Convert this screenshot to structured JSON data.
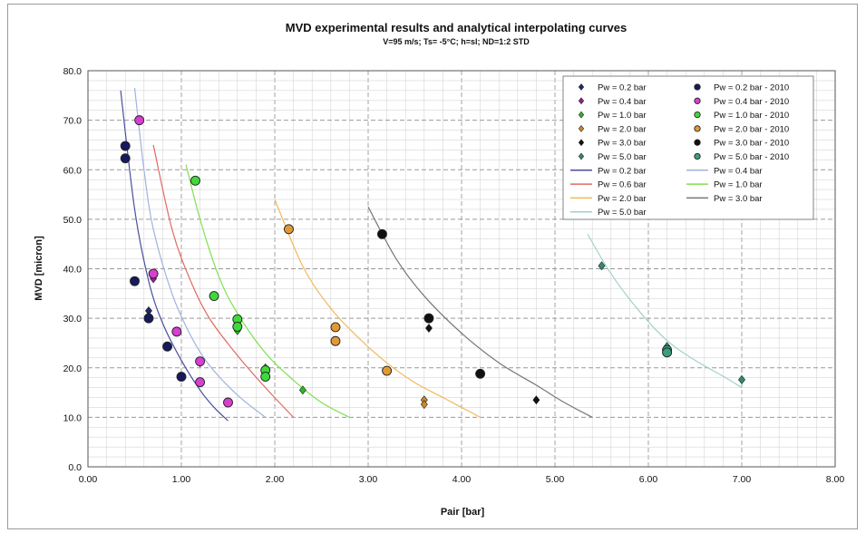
{
  "chart_data": {
    "type": "scatter",
    "title": "MVD experimental results and analytical interpolating curves",
    "subtitle": "V=95 m/s; Ts= -5°C;  h=sl; ND=1:2 STD",
    "xlabel": "Pair [bar]",
    "ylabel": "MVD [micron]",
    "xlim": [
      0,
      8
    ],
    "ylim": [
      0,
      80
    ],
    "x_ticks": [
      "0.00",
      "1.00",
      "2.00",
      "3.00",
      "4.00",
      "5.00",
      "6.00",
      "7.00",
      "8.00"
    ],
    "y_ticks": [
      "0.0",
      "10.0",
      "20.0",
      "30.0",
      "40.0",
      "50.0",
      "60.0",
      "70.0",
      "80.0"
    ],
    "grid": true,
    "legend_position": "top-right",
    "series": [
      {
        "name": "Pw = 0.2 bar",
        "kind": "marker",
        "marker": "diamond",
        "color": "#1f2a6e",
        "points": [
          [
            0.65,
            31.5
          ],
          [
            0.65,
            30.5
          ]
        ]
      },
      {
        "name": "Pw = 0.2 bar - 2010",
        "kind": "marker",
        "marker": "circle",
        "color": "#141a5c",
        "points": [
          [
            0.4,
            64.8
          ],
          [
            0.4,
            62.3
          ],
          [
            0.5,
            37.5
          ],
          [
            0.65,
            30.0
          ],
          [
            0.85,
            24.3
          ],
          [
            1.0,
            18.2
          ]
        ]
      },
      {
        "name": "Pw = 0.4 bar",
        "kind": "marker",
        "marker": "diamond",
        "color": "#a0189a",
        "points": [
          [
            0.7,
            38.0
          ],
          [
            1.2,
            21.0
          ]
        ]
      },
      {
        "name": "Pw = 0.4 bar - 2010",
        "kind": "marker",
        "marker": "circle",
        "color": "#d63fd1",
        "points": [
          [
            0.55,
            70.0
          ],
          [
            0.7,
            39.0
          ],
          [
            0.95,
            27.3
          ],
          [
            1.2,
            21.3
          ],
          [
            1.2,
            17.1
          ],
          [
            1.5,
            13.0
          ]
        ]
      },
      {
        "name": "Pw = 1.0 bar",
        "kind": "marker",
        "marker": "diamond",
        "color": "#2fb52a",
        "points": [
          [
            1.6,
            27.5
          ],
          [
            1.9,
            20.0
          ],
          [
            2.3,
            15.5
          ]
        ]
      },
      {
        "name": "Pw = 1.0 bar - 2010",
        "kind": "marker",
        "marker": "circle",
        "color": "#3ed93a",
        "points": [
          [
            1.15,
            57.8
          ],
          [
            1.35,
            34.5
          ],
          [
            1.6,
            29.8
          ],
          [
            1.6,
            28.3
          ],
          [
            1.9,
            19.5
          ],
          [
            1.9,
            18.2
          ]
        ]
      },
      {
        "name": "Pw = 2.0 bar",
        "kind": "marker",
        "marker": "diamond",
        "color": "#c98a2c",
        "points": [
          [
            3.6,
            13.5
          ],
          [
            3.6,
            12.6
          ]
        ]
      },
      {
        "name": "Pw = 2.0 bar - 2010",
        "kind": "marker",
        "marker": "circle",
        "color": "#e09a35",
        "points": [
          [
            2.15,
            48.0
          ],
          [
            2.65,
            28.2
          ],
          [
            2.65,
            25.4
          ],
          [
            3.2,
            19.4
          ]
        ]
      },
      {
        "name": "Pw = 3.0 bar",
        "kind": "marker",
        "marker": "diamond",
        "color": "#111111",
        "points": [
          [
            3.65,
            28.0
          ],
          [
            4.8,
            13.5
          ]
        ]
      },
      {
        "name": "Pw = 3.0 bar - 2010",
        "kind": "marker",
        "marker": "circle",
        "color": "#111111",
        "points": [
          [
            3.15,
            47.0
          ],
          [
            3.65,
            30.0
          ],
          [
            4.2,
            18.8
          ]
        ]
      },
      {
        "name": "Pw = 5.0 bar",
        "kind": "marker",
        "marker": "diamond",
        "color": "#2e8b6e",
        "points": [
          [
            5.5,
            40.6
          ],
          [
            6.2,
            24.3
          ],
          [
            7.0,
            17.6
          ]
        ]
      },
      {
        "name": "Pw = 5.0 bar - 2010",
        "kind": "marker",
        "marker": "circle",
        "color": "#3a9e80",
        "points": [
          [
            6.2,
            23.6
          ],
          [
            6.2,
            23.1
          ]
        ]
      },
      {
        "name": "Pw = 0.2 bar",
        "kind": "line",
        "color": "#4a4e9c",
        "points": [
          [
            0.35,
            76.0
          ],
          [
            0.5,
            52.0
          ],
          [
            0.65,
            37.5
          ],
          [
            0.8,
            29.0
          ],
          [
            1.0,
            21.5
          ],
          [
            1.2,
            15.5
          ],
          [
            1.35,
            12.0
          ],
          [
            1.5,
            9.3
          ]
        ]
      },
      {
        "name": "Pw = 0.4 bar",
        "kind": "line",
        "color": "#9fb2e0",
        "points": [
          [
            0.5,
            76.5
          ],
          [
            0.6,
            60.0
          ],
          [
            0.7,
            48.0
          ],
          [
            0.9,
            35.0
          ],
          [
            1.1,
            26.5
          ],
          [
            1.3,
            20.5
          ],
          [
            1.6,
            14.5
          ],
          [
            1.9,
            10.0
          ]
        ]
      },
      {
        "name": "Pw = 0.6 bar",
        "kind": "line",
        "color": "#e06a62",
        "points": [
          [
            0.7,
            65.0
          ],
          [
            0.9,
            48.0
          ],
          [
            1.1,
            37.5
          ],
          [
            1.3,
            30.0
          ],
          [
            1.6,
            22.5
          ],
          [
            1.9,
            16.0
          ],
          [
            2.2,
            10.0
          ]
        ]
      },
      {
        "name": "Pw = 1.0 bar",
        "kind": "line",
        "color": "#7fe050",
        "points": [
          [
            1.05,
            61.0
          ],
          [
            1.2,
            50.0
          ],
          [
            1.4,
            38.5
          ],
          [
            1.6,
            31.0
          ],
          [
            1.9,
            23.0
          ],
          [
            2.2,
            17.5
          ],
          [
            2.5,
            13.0
          ],
          [
            2.8,
            10.0
          ]
        ]
      },
      {
        "name": "Pw = 2.0 bar",
        "kind": "line",
        "color": "#f3b85a",
        "points": [
          [
            2.0,
            54.0
          ],
          [
            2.3,
            40.5
          ],
          [
            2.6,
            32.0
          ],
          [
            2.9,
            26.0
          ],
          [
            3.2,
            21.0
          ],
          [
            3.5,
            17.0
          ],
          [
            3.8,
            14.0
          ],
          [
            4.2,
            10.0
          ]
        ]
      },
      {
        "name": "Pw = 3.0 bar",
        "kind": "line",
        "color": "#777777",
        "points": [
          [
            3.0,
            52.5
          ],
          [
            3.3,
            42.0
          ],
          [
            3.6,
            34.5
          ],
          [
            4.0,
            27.0
          ],
          [
            4.4,
            21.0
          ],
          [
            4.8,
            16.5
          ],
          [
            5.1,
            13.0
          ],
          [
            5.4,
            10.0
          ]
        ]
      },
      {
        "name": "Pw = 5.0 bar",
        "kind": "line",
        "color": "#9fd2cc",
        "points": [
          [
            5.35,
            47.0
          ],
          [
            5.6,
            39.0
          ],
          [
            5.9,
            31.5
          ],
          [
            6.2,
            25.5
          ],
          [
            6.5,
            21.5
          ],
          [
            6.8,
            18.3
          ],
          [
            7.0,
            16.0
          ]
        ]
      }
    ],
    "legend": [
      {
        "label": "Pw = 0.2 bar",
        "kind": "diamond",
        "color": "#1f2a6e"
      },
      {
        "label": "Pw = 0.2 bar - 2010",
        "kind": "circle",
        "color": "#141a5c"
      },
      {
        "label": "Pw = 0.4 bar",
        "kind": "diamond",
        "color": "#a0189a"
      },
      {
        "label": "Pw = 0.4 bar - 2010",
        "kind": "circle",
        "color": "#d63fd1"
      },
      {
        "label": "Pw = 1.0 bar",
        "kind": "diamond",
        "color": "#2fb52a"
      },
      {
        "label": "Pw = 1.0 bar - 2010",
        "kind": "circle",
        "color": "#3ed93a"
      },
      {
        "label": "Pw = 2.0 bar",
        "kind": "diamond",
        "color": "#c98a2c"
      },
      {
        "label": "Pw = 2.0 bar - 2010",
        "kind": "circle",
        "color": "#e09a35"
      },
      {
        "label": "Pw = 3.0 bar",
        "kind": "diamond",
        "color": "#111111"
      },
      {
        "label": "Pw = 3.0 bar - 2010",
        "kind": "circle",
        "color": "#111111"
      },
      {
        "label": "Pw = 5.0 bar",
        "kind": "diamond",
        "color": "#2e8b6e"
      },
      {
        "label": "Pw = 5.0 bar - 2010",
        "kind": "circle",
        "color": "#3a9e80"
      },
      {
        "label": "Pw = 0.2 bar",
        "kind": "line",
        "color": "#4a4e9c"
      },
      {
        "label": "Pw = 0.4 bar",
        "kind": "line",
        "color": "#9fb2e0"
      },
      {
        "label": "Pw = 0.6 bar",
        "kind": "line",
        "color": "#e06a62"
      },
      {
        "label": "Pw = 1.0 bar",
        "kind": "line",
        "color": "#7fe050"
      },
      {
        "label": "Pw = 2.0 bar",
        "kind": "line",
        "color": "#f3b85a"
      },
      {
        "label": "Pw = 3.0 bar",
        "kind": "line",
        "color": "#777777"
      },
      {
        "label": "Pw = 5.0 bar",
        "kind": "line",
        "color": "#9fd2cc"
      }
    ]
  }
}
